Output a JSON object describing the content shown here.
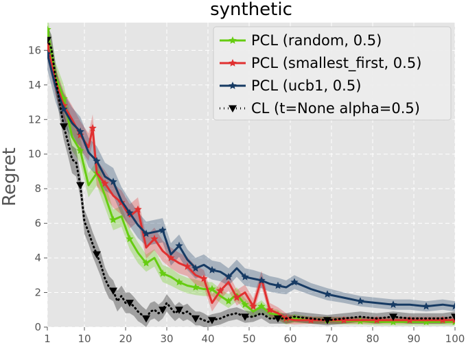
{
  "chart_data": {
    "type": "line",
    "title": "synthetic",
    "xlabel": "",
    "ylabel": "Regret",
    "xlim": [
      1,
      100
    ],
    "ylim": [
      0,
      17.6
    ],
    "xticks": [
      1,
      10,
      20,
      30,
      40,
      50,
      60,
      70,
      80,
      90,
      100
    ],
    "yticks": [
      0,
      2,
      4,
      6,
      8,
      10,
      12,
      14,
      16
    ],
    "grid": true,
    "legend_position": "top-right",
    "background": "#e5e5e5",
    "series": [
      {
        "name": "PCL (random, 0.5)",
        "color": "#66cc11",
        "marker": "star",
        "line_style": "solid",
        "x": [
          1,
          3,
          5,
          7,
          9,
          11,
          13,
          15,
          17,
          19,
          21,
          23,
          25,
          27,
          29,
          31,
          33,
          35,
          37,
          39,
          41,
          43,
          45,
          47,
          49,
          51,
          53,
          55,
          57,
          59,
          61,
          65,
          69,
          73,
          77,
          81,
          85,
          89,
          93,
          97,
          100
        ],
        "y": [
          17.2,
          14.5,
          13.2,
          11.0,
          10.2,
          8.2,
          8.9,
          7.6,
          6.2,
          6.4,
          5.1,
          4.3,
          3.7,
          4.0,
          3.1,
          2.9,
          2.6,
          2.4,
          2.3,
          2.2,
          2.2,
          1.8,
          1.5,
          1.9,
          1.3,
          0.9,
          1.2,
          0.8,
          0.7,
          0.4,
          0.5,
          0.4,
          0.4,
          0.35,
          0.35,
          0.3,
          0.3,
          0.3,
          0.3,
          0.3,
          0.3
        ],
        "band": [
          0.8,
          0.8,
          0.8,
          0.8,
          0.7,
          0.7,
          0.7,
          0.7,
          0.6,
          0.6,
          0.6,
          0.6,
          0.5,
          0.5,
          0.5,
          0.5,
          0.45,
          0.45,
          0.45,
          0.4,
          0.4,
          0.4,
          0.4,
          0.4,
          0.35,
          0.35,
          0.35,
          0.3,
          0.3,
          0.25,
          0.25,
          0.2,
          0.2,
          0.2,
          0.2,
          0.2,
          0.2,
          0.2,
          0.2,
          0.2,
          0.2
        ]
      },
      {
        "name": "PCL (smallest_first, 0.5)",
        "color": "#e03030",
        "marker": "star",
        "line_style": "solid",
        "x": [
          1,
          3,
          5,
          7,
          9,
          11,
          12,
          13,
          15,
          17,
          19,
          21,
          23,
          25,
          27,
          29,
          31,
          33,
          35,
          37,
          39,
          41,
          43,
          45,
          47,
          49,
          51,
          53,
          55,
          57,
          59,
          61,
          65,
          69,
          73,
          77,
          81,
          85,
          89,
          93,
          97,
          100
        ],
        "y": [
          16.3,
          14.2,
          12.8,
          12.0,
          11.1,
          10.4,
          11.5,
          8.9,
          8.3,
          7.6,
          7.2,
          6.4,
          6.8,
          4.6,
          5.1,
          4.4,
          4.0,
          3.7,
          3.5,
          3.0,
          2.8,
          1.4,
          2.1,
          2.6,
          1.7,
          2.0,
          1.2,
          2.8,
          1.0,
          0.8,
          0.5,
          0.4,
          0.4,
          0.4,
          0.4,
          0.4,
          0.4,
          0.4,
          0.4,
          0.4,
          0.4,
          0.4
        ],
        "band": [
          0.8,
          0.8,
          0.8,
          0.8,
          0.8,
          0.8,
          0.8,
          0.75,
          0.75,
          0.7,
          0.7,
          0.7,
          0.7,
          0.65,
          0.65,
          0.6,
          0.6,
          0.6,
          0.55,
          0.55,
          0.5,
          0.5,
          0.5,
          0.5,
          0.45,
          0.45,
          0.45,
          0.45,
          0.4,
          0.35,
          0.3,
          0.25,
          0.2,
          0.2,
          0.2,
          0.2,
          0.2,
          0.2,
          0.2,
          0.2,
          0.2,
          0.2
        ]
      },
      {
        "name": "PCL (ucb1, 0.5)",
        "color": "#163a63",
        "marker": "star",
        "line_style": "solid",
        "x": [
          1,
          3,
          5,
          7,
          9,
          11,
          13,
          15,
          17,
          19,
          21,
          23,
          25,
          27,
          29,
          31,
          33,
          35,
          37,
          39,
          41,
          43,
          45,
          47,
          49,
          51,
          53,
          55,
          57,
          59,
          61,
          65,
          69,
          73,
          77,
          81,
          85,
          89,
          93,
          97,
          100
        ],
        "y": [
          15.8,
          13.9,
          12.6,
          11.8,
          11.3,
          10.1,
          9.6,
          8.7,
          8.4,
          7.3,
          6.6,
          5.9,
          5.4,
          5.5,
          5.6,
          4.2,
          4.7,
          3.9,
          3.4,
          3.6,
          3.3,
          3.2,
          2.9,
          3.4,
          2.9,
          2.8,
          2.7,
          2.5,
          2.4,
          2.3,
          2.6,
          2.2,
          1.9,
          1.7,
          1.5,
          1.4,
          1.3,
          1.3,
          1.2,
          1.3,
          1.2
        ],
        "band": [
          0.9,
          0.9,
          0.9,
          0.9,
          0.85,
          0.85,
          0.85,
          0.8,
          0.8,
          0.8,
          0.75,
          0.75,
          0.7,
          0.7,
          0.7,
          0.65,
          0.65,
          0.6,
          0.6,
          0.6,
          0.55,
          0.55,
          0.5,
          0.5,
          0.5,
          0.5,
          0.45,
          0.45,
          0.45,
          0.4,
          0.4,
          0.35,
          0.35,
          0.3,
          0.3,
          0.3,
          0.3,
          0.3,
          0.3,
          0.3,
          0.3
        ]
      },
      {
        "name": "CL (t=None alpha=0.5)",
        "color": "#000000",
        "marker": "triangle-down",
        "line_style": "dotted",
        "x": [
          1,
          2,
          3,
          4,
          5,
          6,
          7,
          8,
          9,
          10,
          11,
          12,
          13,
          14,
          15,
          16,
          17,
          18,
          19,
          20,
          21,
          22,
          23,
          24,
          25,
          26,
          27,
          28,
          29,
          30,
          31,
          32,
          33,
          34,
          35,
          36,
          37,
          38,
          39,
          40,
          41,
          43,
          45,
          47,
          49,
          51,
          53,
          55,
          57,
          59,
          61,
          65,
          69,
          73,
          77,
          81,
          85,
          89,
          93,
          97,
          100
        ],
        "y": [
          16.6,
          16.1,
          14.4,
          12.9,
          11.6,
          10.7,
          9.7,
          9.5,
          8.2,
          6.1,
          5.5,
          4.8,
          4.2,
          3.6,
          2.8,
          2.3,
          2.1,
          1.5,
          1.8,
          1.4,
          1.4,
          1.2,
          0.9,
          0.7,
          0.5,
          0.9,
          1.0,
          0.8,
          1.0,
          1.4,
          1.1,
          0.8,
          1.0,
          0.8,
          0.9,
          0.7,
          0.5,
          0.5,
          0.4,
          0.3,
          0.4,
          0.5,
          0.7,
          0.8,
          0.6,
          0.6,
          0.8,
          0.5,
          0.5,
          0.5,
          0.6,
          0.5,
          0.4,
          0.5,
          0.6,
          0.5,
          0.6,
          0.5,
          0.5,
          0.5,
          0.6
        ],
        "band": [
          0.8,
          0.8,
          0.8,
          0.8,
          0.8,
          0.8,
          0.8,
          0.8,
          0.7,
          0.7,
          0.7,
          0.7,
          0.7,
          0.7,
          0.65,
          0.65,
          0.6,
          0.6,
          0.6,
          0.6,
          0.6,
          0.55,
          0.55,
          0.5,
          0.5,
          0.5,
          0.5,
          0.5,
          0.5,
          0.5,
          0.5,
          0.45,
          0.45,
          0.45,
          0.45,
          0.4,
          0.4,
          0.4,
          0.4,
          0.35,
          0.35,
          0.35,
          0.35,
          0.35,
          0.35,
          0.3,
          0.3,
          0.3,
          0.3,
          0.3,
          0.3,
          0.3,
          0.3,
          0.3,
          0.3,
          0.3,
          0.3,
          0.3,
          0.3,
          0.3,
          0.3
        ]
      }
    ]
  }
}
